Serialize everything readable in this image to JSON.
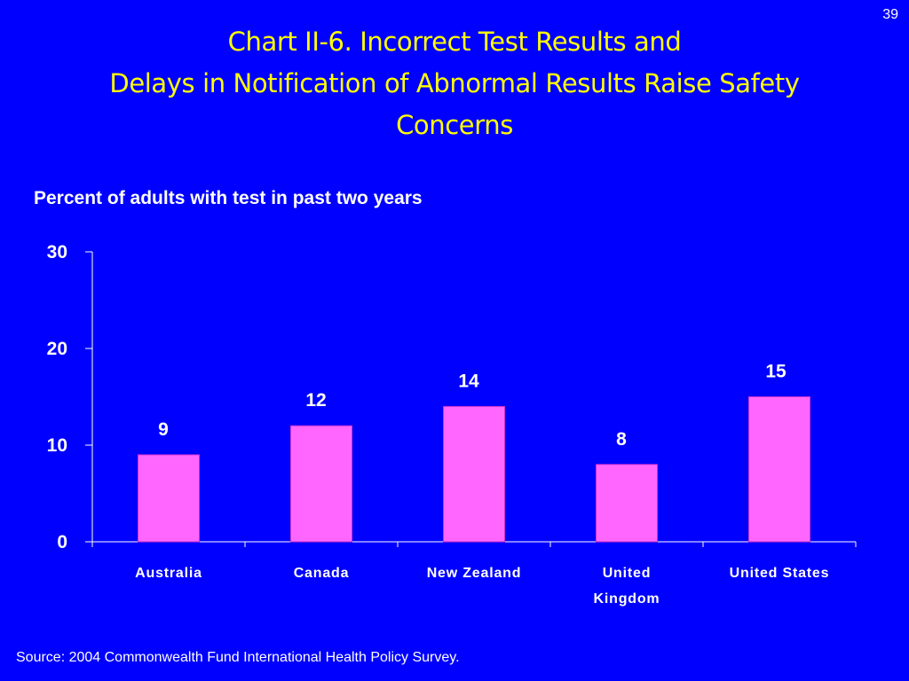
{
  "slide_number": "39",
  "title_lines": [
    "Chart II-6. Incorrect Test Results and",
    "Delays in Notification of Abnormal Results Raise Safety",
    "Concerns"
  ],
  "source": "Source: 2004 Commonwealth Fund International Health Policy Survey.",
  "colors": {
    "background": "#0000FF",
    "title": "#FFFF00",
    "bar": "#FF66FF",
    "text": "#FFFFFF"
  },
  "chart_data": {
    "type": "bar",
    "title": "",
    "ylabel": "Percent of adults with test in past two years",
    "xlabel": "",
    "categories": [
      [
        "Australia"
      ],
      [
        "Canada"
      ],
      [
        "New Zealand"
      ],
      [
        "United",
        "Kingdom"
      ],
      [
        "United States"
      ]
    ],
    "values": [
      9,
      12,
      14,
      8,
      15
    ],
    "data_labels": [
      "9",
      "12",
      "14",
      "8",
      "15"
    ],
    "ylim": [
      0,
      30
    ],
    "yticks": [
      0,
      10,
      20,
      30
    ],
    "ytick_labels": [
      "0",
      "10",
      "20",
      "30"
    ],
    "grid": false,
    "legend": "none"
  }
}
